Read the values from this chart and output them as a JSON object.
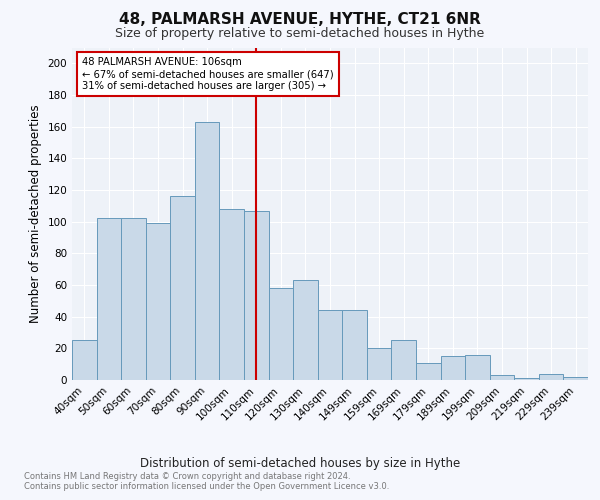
{
  "title": "48, PALMARSH AVENUE, HYTHE, CT21 6NR",
  "subtitle": "Size of property relative to semi-detached houses in Hythe",
  "xlabel": "Distribution of semi-detached houses by size in Hythe",
  "ylabel": "Number of semi-detached properties",
  "footnote1": "Contains HM Land Registry data © Crown copyright and database right 2024.",
  "footnote2": "Contains public sector information licensed under the Open Government Licence v3.0.",
  "categories": [
    "40sqm",
    "50sqm",
    "60sqm",
    "70sqm",
    "80sqm",
    "90sqm",
    "100sqm",
    "110sqm",
    "120sqm",
    "130sqm",
    "140sqm",
    "149sqm",
    "159sqm",
    "169sqm",
    "179sqm",
    "189sqm",
    "199sqm",
    "209sqm",
    "219sqm",
    "229sqm",
    "239sqm"
  ],
  "values": [
    25,
    102,
    102,
    99,
    116,
    163,
    108,
    107,
    58,
    63,
    44,
    44,
    20,
    25,
    11,
    15,
    16,
    3,
    1,
    4,
    2
  ],
  "bar_color": "#c9d9e8",
  "bar_edge_color": "#6699bb",
  "vline_x": 7.0,
  "vline_color": "#cc0000",
  "annotation_title": "48 PALMARSH AVENUE: 106sqm",
  "annotation_line2": "← 67% of semi-detached houses are smaller (647)",
  "annotation_line3": "31% of semi-detached houses are larger (305) →",
  "annotation_box_color": "#ffffff",
  "annotation_box_edge": "#cc0000",
  "ylim": [
    0,
    210
  ],
  "yticks": [
    0,
    20,
    40,
    60,
    80,
    100,
    120,
    140,
    160,
    180,
    200
  ],
  "bg_color": "#eef2f8",
  "grid_color": "#ffffff",
  "title_fontsize": 11,
  "subtitle_fontsize": 9,
  "axis_fontsize": 8.5,
  "tick_fontsize": 7.5,
  "footnote_fontsize": 6.0
}
